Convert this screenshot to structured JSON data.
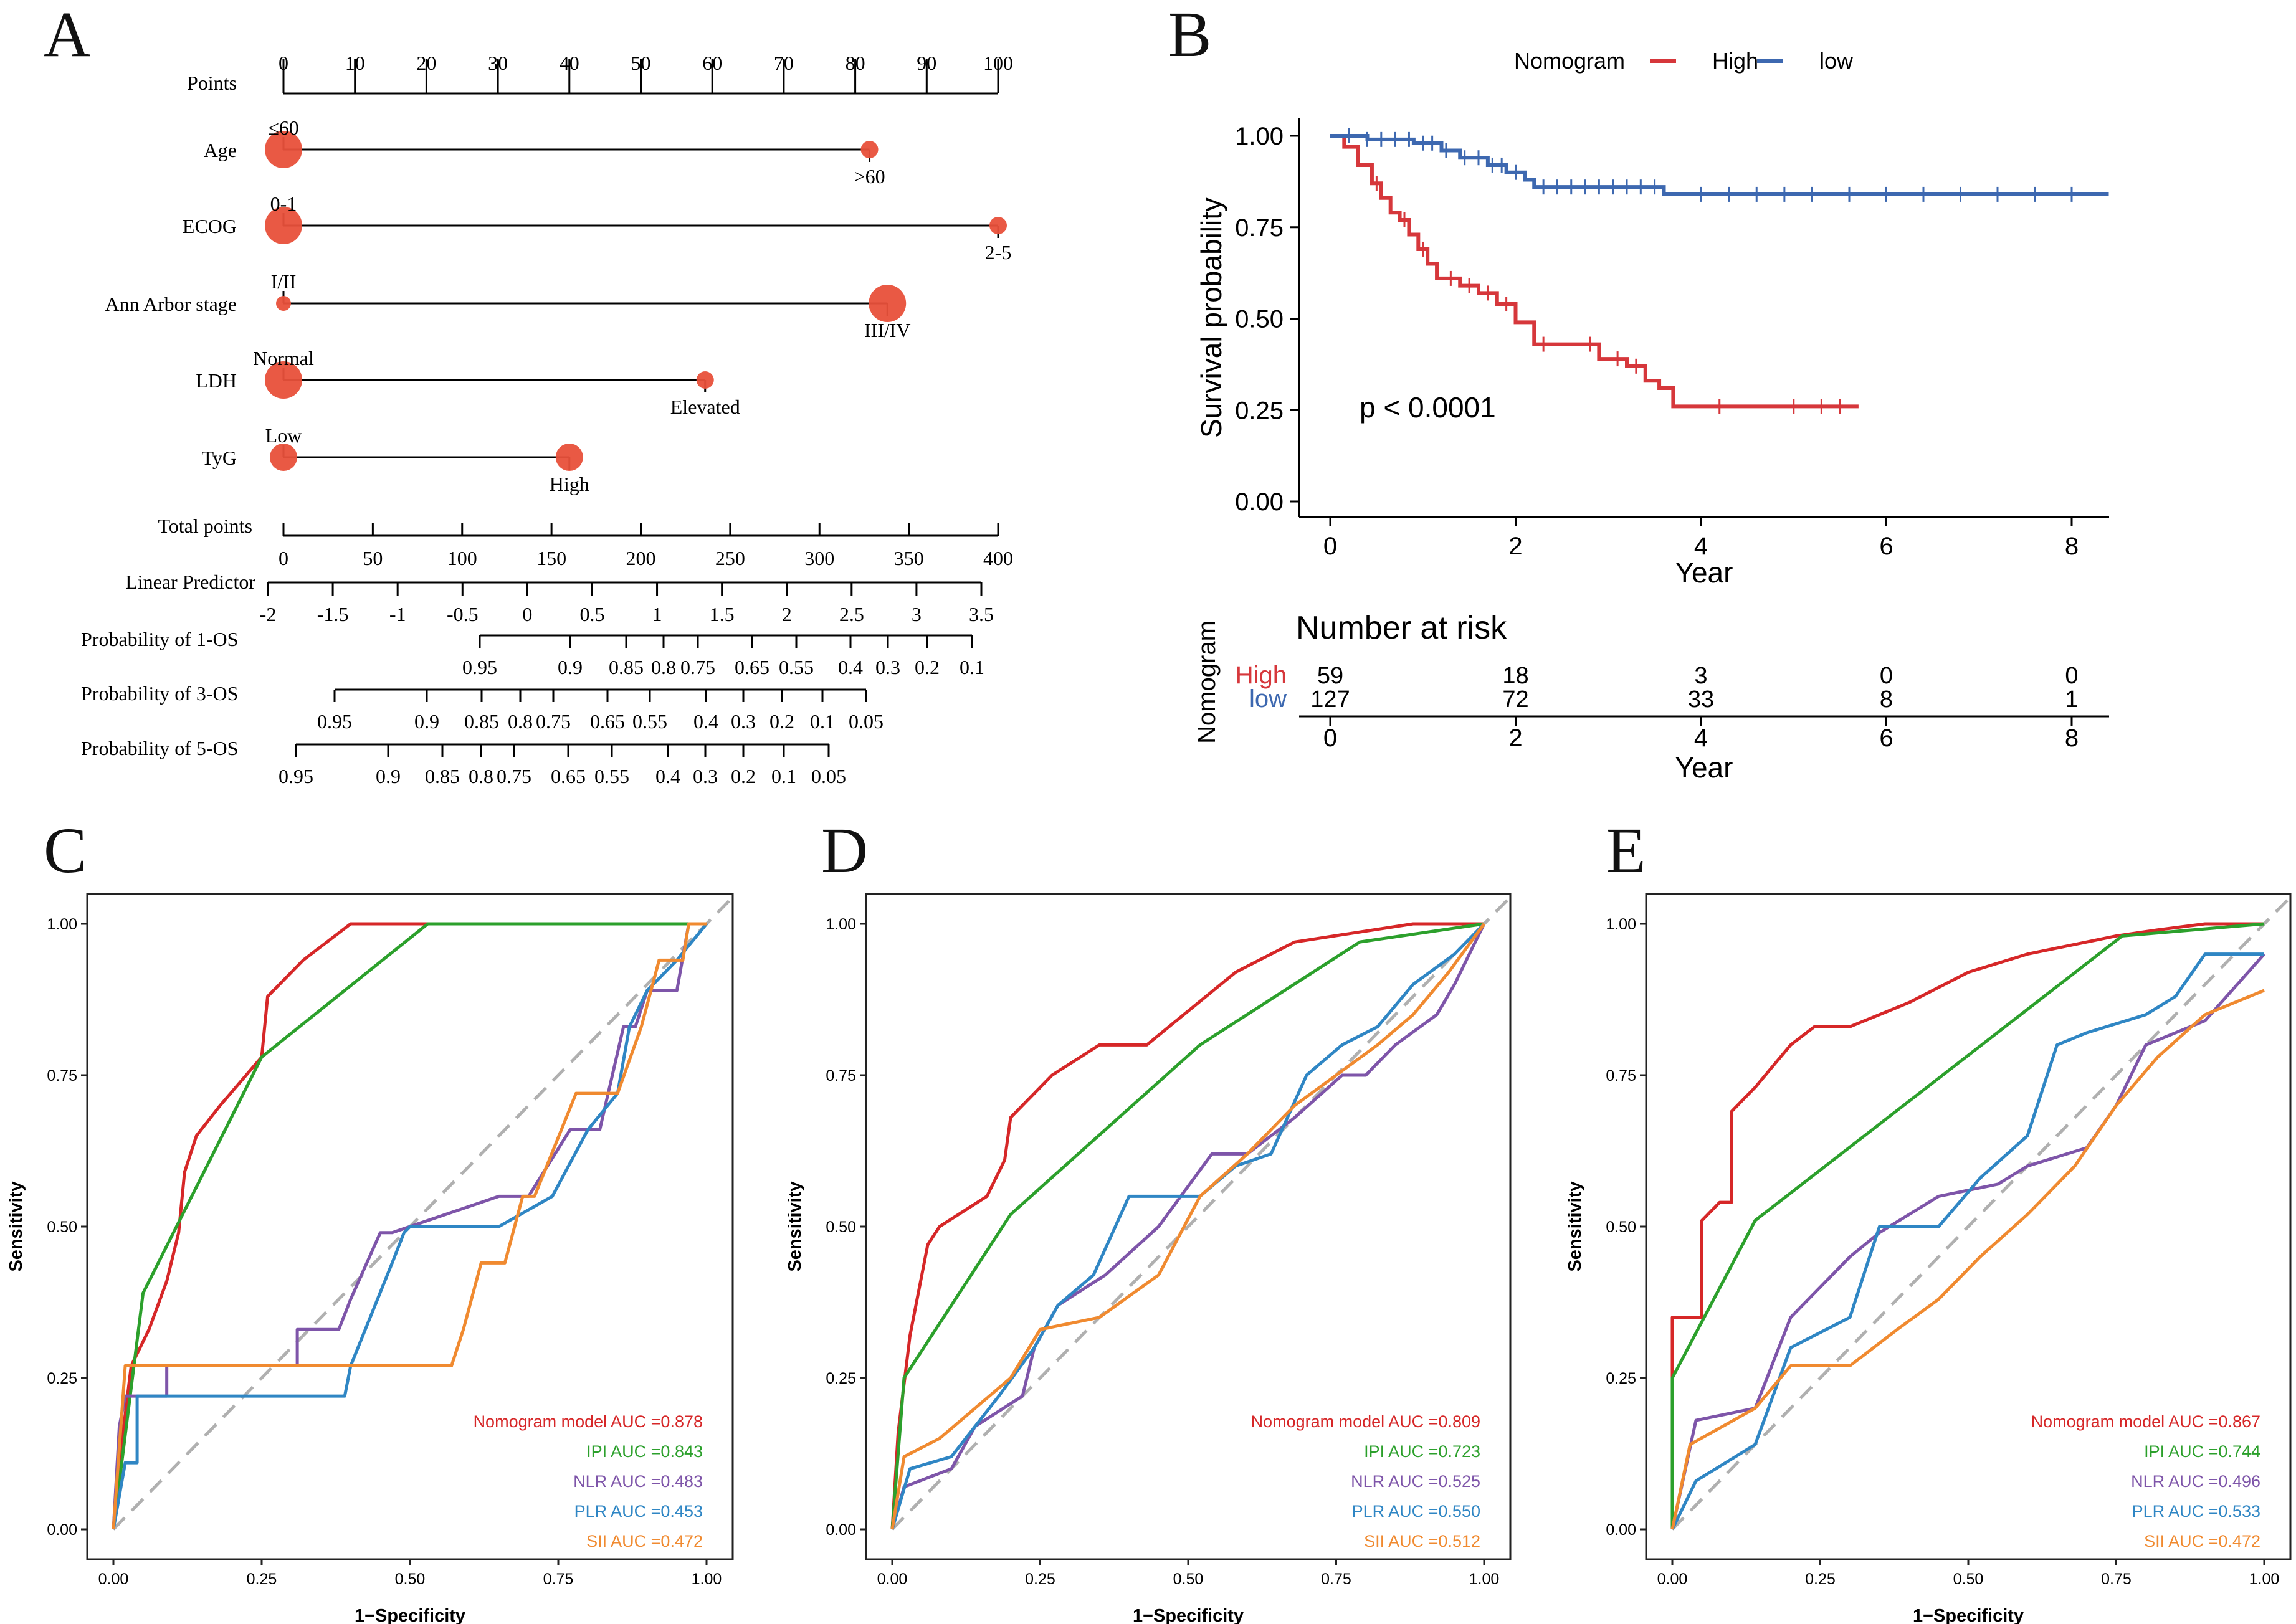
{
  "panels": {
    "A": "A",
    "B": "B",
    "C": "C",
    "D": "D",
    "E": "E"
  },
  "chart_data": [
    {
      "id": "A",
      "type": "nomogram",
      "points_scale": {
        "label": "Points",
        "ticks": [
          "0",
          "10",
          "20",
          "30",
          "40",
          "50",
          "60",
          "70",
          "80",
          "90",
          "100"
        ]
      },
      "variables": [
        {
          "label": "Age",
          "levels": [
            {
              "name": "≤60",
              "points": 0
            },
            {
              "name": ">60",
              "points": 82
            }
          ]
        },
        {
          "label": "ECOG",
          "levels": [
            {
              "name": "0-1",
              "points": 0
            },
            {
              "name": "2-5",
              "points": 100
            }
          ]
        },
        {
          "label": "Ann Arbor stage",
          "levels": [
            {
              "name": "I/II",
              "points": 0
            },
            {
              "name": "III/IV",
              "points": 84.5
            }
          ]
        },
        {
          "label": "LDH",
          "levels": [
            {
              "name": "Normal",
              "points": 0
            },
            {
              "name": "Elevated",
              "points": 59
            }
          ]
        },
        {
          "label": "TyG",
          "levels": [
            {
              "name": "Low",
              "points": 0
            },
            {
              "name": "High",
              "points": 40
            }
          ]
        }
      ],
      "total_points": {
        "label": "Total points",
        "ticks": [
          "0",
          "50",
          "100",
          "150",
          "200",
          "250",
          "300",
          "350",
          "400"
        ]
      },
      "linear_predictor": {
        "label": "Linear Predictor",
        "ticks": [
          "-2",
          "-1.5",
          "-1",
          "-0.5",
          "0",
          "0.5",
          "1",
          "1.5",
          "2",
          "2.5",
          "3",
          "3.5"
        ]
      },
      "probability_scales": [
        {
          "label": "Probability of 1-OS",
          "ticks": [
            "0.95",
            "0.9",
            "0.85",
            "0.8",
            "0.75",
            "0.65",
            "0.55",
            "0.4",
            "0.3",
            "0.2",
            "0.1"
          ]
        },
        {
          "label": "Probability of 3-OS",
          "ticks": [
            "0.95",
            "0.9",
            "0.85",
            "0.8",
            "0.75",
            "0.65",
            "0.55",
            "0.4",
            "0.3",
            "0.2",
            "0.1",
            "0.05"
          ]
        },
        {
          "label": "Probability of 5-OS",
          "ticks": [
            "0.95",
            "0.9",
            "0.85",
            "0.8",
            "0.75",
            "0.65",
            "0.55",
            "0.4",
            "0.3",
            "0.2",
            "0.1",
            "0.05"
          ]
        }
      ]
    },
    {
      "id": "B",
      "type": "line",
      "legend_title": "Nomogram",
      "legend": [
        {
          "name": "High",
          "color": "#d6373b"
        },
        {
          "name": "low",
          "color": "#3d68b0"
        }
      ],
      "xlabel": "Year",
      "ylabel": "Survival probability",
      "xlim": [
        0,
        8.4
      ],
      "ylim": [
        0,
        1
      ],
      "xticks": [
        "0",
        "2",
        "4",
        "6",
        "8"
      ],
      "yticks": [
        "0.00",
        "0.25",
        "0.50",
        "0.75",
        "1.00"
      ],
      "pvalue": "p < 0.0001",
      "series": [
        {
          "name": "High",
          "color": "#d6373b",
          "x": [
            0,
            0.15,
            0.3,
            0.45,
            0.55,
            0.65,
            0.75,
            0.85,
            0.95,
            1.05,
            1.15,
            1.4,
            1.6,
            1.8,
            2.0,
            2.2,
            2.6,
            2.9,
            3.2,
            3.4,
            3.55,
            3.7,
            5.7
          ],
          "y": [
            1.0,
            0.97,
            0.92,
            0.87,
            0.83,
            0.79,
            0.77,
            0.73,
            0.69,
            0.65,
            0.61,
            0.59,
            0.57,
            0.54,
            0.49,
            0.43,
            0.43,
            0.39,
            0.37,
            0.33,
            0.31,
            0.26,
            0.26
          ],
          "censor_x": [
            0.5,
            0.8,
            1.0,
            1.3,
            1.5,
            1.7,
            1.9,
            2.3,
            2.8,
            3.1,
            3.3,
            4.2,
            5.0,
            5.3,
            5.5
          ]
        },
        {
          "name": "low",
          "color": "#3d68b0",
          "x": [
            0,
            0.4,
            0.9,
            1.2,
            1.4,
            1.7,
            1.9,
            2.1,
            2.2,
            3.6,
            8.4
          ],
          "y": [
            1.0,
            0.99,
            0.98,
            0.96,
            0.94,
            0.92,
            0.9,
            0.88,
            0.86,
            0.84,
            0.84
          ],
          "censor_x": [
            0.2,
            0.4,
            0.55,
            0.7,
            0.85,
            1.0,
            1.1,
            1.25,
            1.45,
            1.6,
            1.75,
            1.85,
            2.0,
            2.3,
            2.45,
            2.6,
            2.75,
            2.9,
            3.05,
            3.2,
            3.35,
            3.5,
            4.0,
            4.3,
            4.6,
            4.9,
            5.2,
            5.6,
            6.0,
            6.4,
            6.8,
            7.2,
            7.6,
            8.0
          ]
        }
      ],
      "risk_table": {
        "title": "Number at risk",
        "ylabel": "Nomogram",
        "xlabel": "Year",
        "xticks": [
          "0",
          "2",
          "4",
          "6",
          "8"
        ],
        "rows": [
          {
            "name": "High",
            "color": "#d6373b",
            "values": [
              "59",
              "18",
              "3",
              "0",
              "0"
            ]
          },
          {
            "name": "low",
            "color": "#3d68b0",
            "values": [
              "127",
              "72",
              "33",
              "8",
              "1"
            ]
          }
        ]
      }
    },
    {
      "id": "C",
      "type": "line",
      "xlabel": "1−Specificity",
      "ylabel": "Sensitivity",
      "ticks": [
        "0.00",
        "0.25",
        "0.50",
        "0.75",
        "1.00"
      ],
      "xlim": [
        0,
        1
      ],
      "ylim": [
        0,
        1
      ],
      "series": [
        {
          "name": "Nomogram model AUC =0.878",
          "color": "#d62728",
          "x": [
            0,
            0.01,
            0.03,
            0.06,
            0.09,
            0.11,
            0.12,
            0.14,
            0.18,
            0.25,
            0.26,
            0.32,
            0.4,
            1.0
          ],
          "y": [
            0,
            0.11,
            0.27,
            0.33,
            0.41,
            0.49,
            0.59,
            0.65,
            0.7,
            0.78,
            0.88,
            0.94,
            1.0,
            1.0
          ]
        },
        {
          "name": "IPI AUC =0.843",
          "color": "#2ca02c",
          "x": [
            0,
            0.05,
            0.25,
            0.53,
            1.0
          ],
          "y": [
            0,
            0.39,
            0.78,
            1.0,
            1.0
          ]
        },
        {
          "name": "NLR AUC =0.483",
          "color": "#7e55a9",
          "x": [
            0,
            0.01,
            0.02,
            0.09,
            0.09,
            0.31,
            0.31,
            0.38,
            0.4,
            0.45,
            0.47,
            0.65,
            0.7,
            0.77,
            0.82,
            0.86,
            0.88,
            0.9,
            0.95,
            0.97,
            1.0
          ],
          "y": [
            0,
            0.17,
            0.22,
            0.22,
            0.27,
            0.27,
            0.33,
            0.33,
            0.38,
            0.49,
            0.49,
            0.55,
            0.55,
            0.66,
            0.66,
            0.83,
            0.83,
            0.89,
            0.89,
            1.0,
            1.0
          ]
        },
        {
          "name": "PLR AUC =0.453",
          "color": "#2f86c4",
          "x": [
            0,
            0.02,
            0.04,
            0.04,
            0.39,
            0.4,
            0.47,
            0.49,
            0.5,
            0.65,
            0.74,
            0.8,
            0.85,
            0.87,
            0.9,
            0.95,
            1.0
          ],
          "y": [
            0,
            0.11,
            0.11,
            0.22,
            0.22,
            0.27,
            0.44,
            0.49,
            0.5,
            0.5,
            0.55,
            0.66,
            0.72,
            0.83,
            0.89,
            0.94,
            1.0
          ]
        },
        {
          "name": "SII AUC =0.472",
          "color": "#f08a30",
          "x": [
            0,
            0.02,
            0.57,
            0.59,
            0.62,
            0.66,
            0.69,
            0.71,
            0.78,
            0.8,
            0.85,
            0.89,
            0.92,
            0.96,
            0.97,
            1.0
          ],
          "y": [
            0,
            0.27,
            0.27,
            0.33,
            0.44,
            0.44,
            0.55,
            0.55,
            0.72,
            0.72,
            0.72,
            0.83,
            0.94,
            0.94,
            1.0,
            1.0
          ]
        }
      ]
    },
    {
      "id": "D",
      "type": "line",
      "xlabel": "1−Specificity",
      "ylabel": "Sensitivity",
      "ticks": [
        "0.00",
        "0.25",
        "0.50",
        "0.75",
        "1.00"
      ],
      "xlim": [
        0,
        1
      ],
      "ylim": [
        0,
        1
      ],
      "series": [
        {
          "name": "Nomogram model AUC =0.809",
          "color": "#d62728",
          "x": [
            0,
            0.01,
            0.03,
            0.04,
            0.05,
            0.06,
            0.08,
            0.16,
            0.19,
            0.2,
            0.27,
            0.35,
            0.43,
            0.58,
            0.68,
            0.88,
            1.0
          ],
          "y": [
            0,
            0.16,
            0.32,
            0.37,
            0.42,
            0.47,
            0.5,
            0.55,
            0.61,
            0.68,
            0.75,
            0.8,
            0.8,
            0.92,
            0.97,
            1.0,
            1.0
          ]
        },
        {
          "name": "IPI AUC =0.723",
          "color": "#2ca02c",
          "x": [
            0,
            0.02,
            0.2,
            0.52,
            0.79,
            1.0
          ],
          "y": [
            0,
            0.25,
            0.52,
            0.8,
            0.97,
            1.0
          ]
        },
        {
          "name": "NLR AUC =0.525",
          "color": "#7e55a9",
          "x": [
            0,
            0.02,
            0.1,
            0.14,
            0.22,
            0.24,
            0.28,
            0.36,
            0.45,
            0.54,
            0.6,
            0.68,
            0.76,
            0.8,
            0.85,
            0.92,
            0.95,
            1.0
          ],
          "y": [
            0,
            0.07,
            0.1,
            0.17,
            0.22,
            0.3,
            0.37,
            0.42,
            0.5,
            0.62,
            0.62,
            0.68,
            0.75,
            0.75,
            0.8,
            0.85,
            0.9,
            1.0
          ]
        },
        {
          "name": "PLR AUC =0.550",
          "color": "#2f86c4",
          "x": [
            0,
            0.03,
            0.1,
            0.18,
            0.24,
            0.28,
            0.34,
            0.4,
            0.52,
            0.58,
            0.64,
            0.7,
            0.76,
            0.82,
            0.88,
            0.95,
            1.0
          ],
          "y": [
            0,
            0.1,
            0.12,
            0.22,
            0.3,
            0.37,
            0.42,
            0.55,
            0.55,
            0.6,
            0.62,
            0.75,
            0.8,
            0.83,
            0.9,
            0.95,
            1.0
          ]
        },
        {
          "name": "SII AUC =0.512",
          "color": "#f08a30",
          "x": [
            0,
            0.02,
            0.08,
            0.2,
            0.25,
            0.35,
            0.45,
            0.52,
            0.6,
            0.68,
            0.75,
            0.82,
            0.88,
            0.94,
            1.0
          ],
          "y": [
            0,
            0.12,
            0.15,
            0.25,
            0.33,
            0.35,
            0.42,
            0.55,
            0.62,
            0.7,
            0.75,
            0.8,
            0.85,
            0.92,
            1.0
          ]
        }
      ]
    },
    {
      "id": "E",
      "type": "line",
      "xlabel": "1−Specificity",
      "ylabel": "Sensitivity",
      "ticks": [
        "0.00",
        "0.25",
        "0.50",
        "0.75",
        "1.00"
      ],
      "xlim": [
        0,
        1
      ],
      "ylim": [
        0,
        1
      ],
      "series": [
        {
          "name": "Nomogram model AUC =0.867",
          "color": "#d62728",
          "x": [
            0,
            0.0,
            0.05,
            0.05,
            0.08,
            0.1,
            0.1,
            0.14,
            0.2,
            0.24,
            0.3,
            0.4,
            0.5,
            0.6,
            0.75,
            0.82,
            0.9,
            1.0
          ],
          "y": [
            0,
            0.35,
            0.35,
            0.51,
            0.54,
            0.54,
            0.69,
            0.73,
            0.8,
            0.83,
            0.83,
            0.87,
            0.92,
            0.95,
            0.98,
            0.99,
            1.0,
            1.0
          ]
        },
        {
          "name": "IPI AUC =0.744",
          "color": "#2ca02c",
          "x": [
            0,
            0.0,
            0.14,
            0.76,
            1.0
          ],
          "y": [
            0,
            0.25,
            0.51,
            0.98,
            1.0
          ]
        },
        {
          "name": "NLR AUC =0.496",
          "color": "#7e55a9",
          "x": [
            0,
            0.04,
            0.14,
            0.2,
            0.3,
            0.35,
            0.45,
            0.55,
            0.6,
            0.7,
            0.75,
            0.8,
            0.9,
            1.0
          ],
          "y": [
            0,
            0.18,
            0.2,
            0.35,
            0.45,
            0.49,
            0.55,
            0.57,
            0.6,
            0.63,
            0.7,
            0.8,
            0.84,
            0.95
          ]
        },
        {
          "name": "PLR AUC =0.533",
          "color": "#2f86c4",
          "x": [
            0,
            0.04,
            0.14,
            0.2,
            0.3,
            0.35,
            0.45,
            0.52,
            0.6,
            0.65,
            0.7,
            0.8,
            0.85,
            0.9,
            1.0
          ],
          "y": [
            0,
            0.08,
            0.14,
            0.3,
            0.35,
            0.5,
            0.5,
            0.58,
            0.65,
            0.8,
            0.82,
            0.85,
            0.88,
            0.95,
            0.95
          ]
        },
        {
          "name": "SII AUC =0.472",
          "color": "#f08a30",
          "x": [
            0,
            0.03,
            0.14,
            0.2,
            0.3,
            0.38,
            0.45,
            0.52,
            0.6,
            0.68,
            0.75,
            0.82,
            0.9,
            1.0
          ],
          "y": [
            0,
            0.14,
            0.2,
            0.27,
            0.27,
            0.33,
            0.38,
            0.45,
            0.52,
            0.6,
            0.7,
            0.78,
            0.85,
            0.89
          ]
        }
      ]
    }
  ]
}
